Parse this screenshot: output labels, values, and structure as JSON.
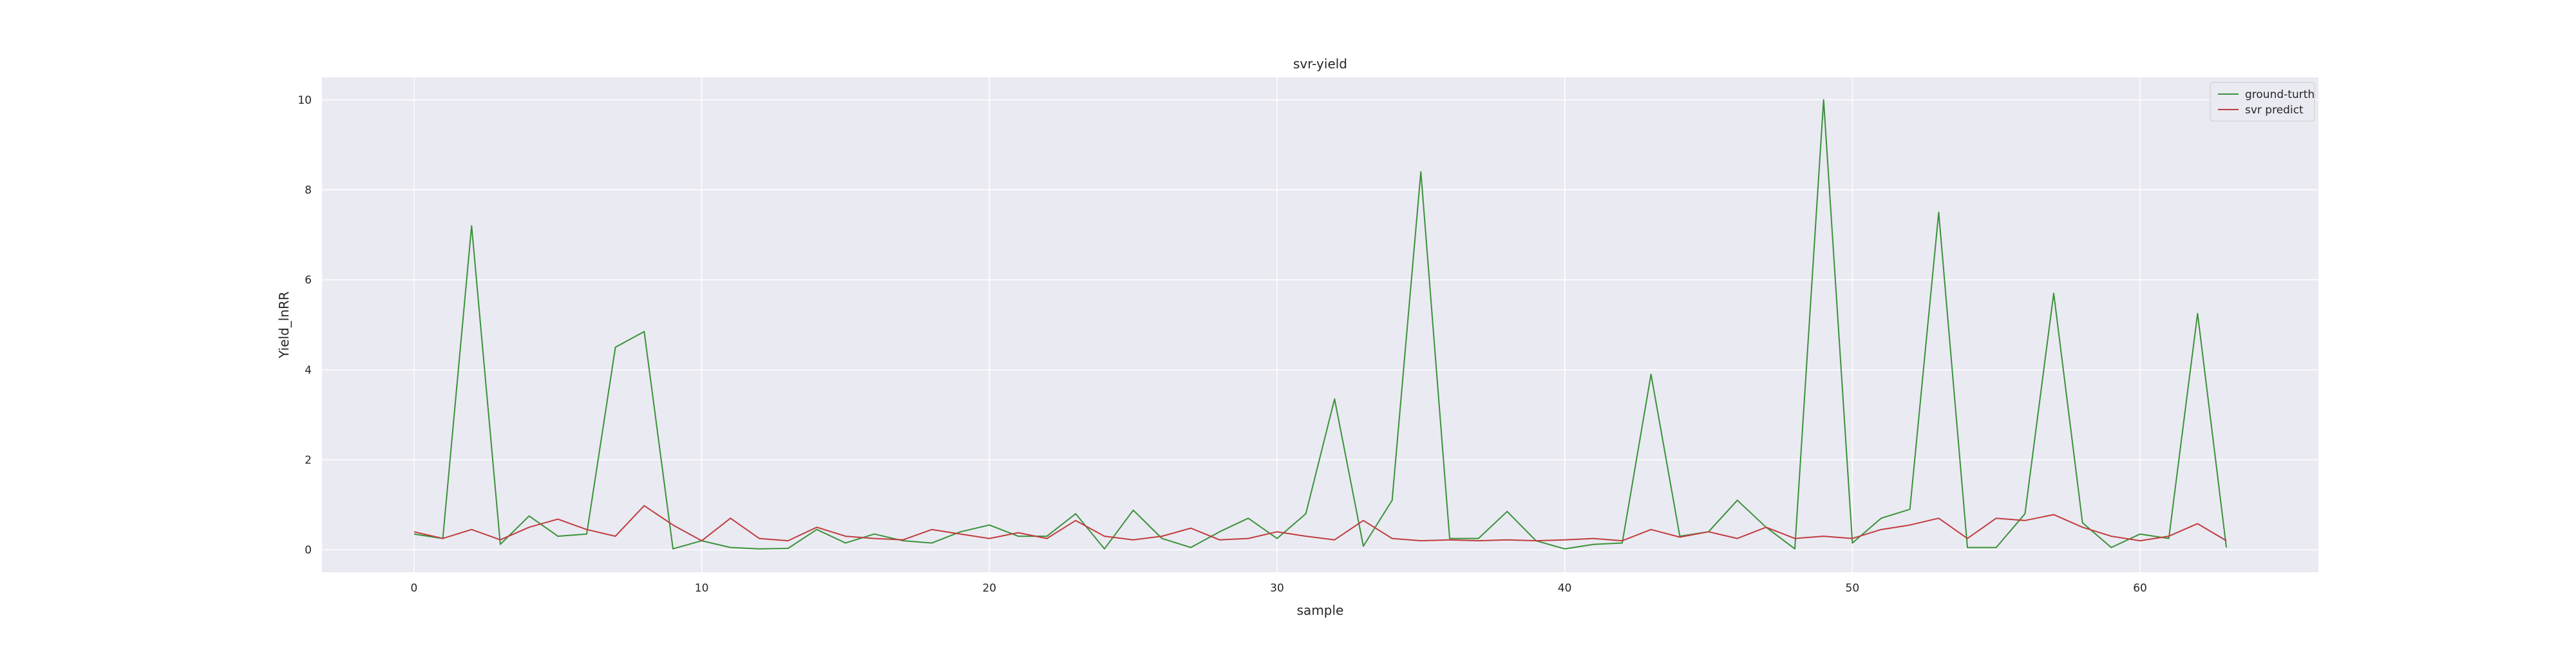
{
  "chart_data": {
    "type": "line",
    "title": "svr-yield",
    "xlabel": "sample",
    "ylabel": "Yield_lnRR",
    "xlim": [
      -3.2,
      66.2
    ],
    "ylim": [
      -0.5,
      10.5
    ],
    "xticks": [
      0,
      10,
      20,
      30,
      40,
      50,
      60
    ],
    "yticks": [
      0,
      2,
      4,
      6,
      8,
      10
    ],
    "grid": true,
    "legend_position": "top-right",
    "x": [
      0,
      1,
      2,
      3,
      4,
      5,
      6,
      7,
      8,
      9,
      10,
      11,
      12,
      13,
      14,
      15,
      16,
      17,
      18,
      19,
      20,
      21,
      22,
      23,
      24,
      25,
      26,
      27,
      28,
      29,
      30,
      31,
      32,
      33,
      34,
      35,
      36,
      37,
      38,
      39,
      40,
      41,
      42,
      43,
      44,
      45,
      46,
      47,
      48,
      49,
      50,
      51,
      52,
      53,
      54,
      55,
      56,
      57,
      58,
      59,
      60,
      61,
      62,
      63
    ],
    "series": [
      {
        "name": "ground-turth",
        "color": "#3a923a",
        "values": [
          0.35,
          0.25,
          7.2,
          0.12,
          0.75,
          0.3,
          0.35,
          4.5,
          4.85,
          0.02,
          0.2,
          0.05,
          0.02,
          0.03,
          0.45,
          0.15,
          0.35,
          0.2,
          0.15,
          0.4,
          0.55,
          0.3,
          0.3,
          0.8,
          0.02,
          0.88,
          0.25,
          0.05,
          0.4,
          0.7,
          0.25,
          0.8,
          3.35,
          0.08,
          1.1,
          8.4,
          0.25,
          0.25,
          0.85,
          0.2,
          0.02,
          0.12,
          0.15,
          3.9,
          0.3,
          0.4,
          1.1,
          0.5,
          0.02,
          10.0,
          0.15,
          0.7,
          0.9,
          7.5,
          0.05,
          0.05,
          0.8,
          5.7,
          0.6,
          0.05,
          0.35,
          0.25,
          5.25,
          0.05
        ]
      },
      {
        "name": "svr predict",
        "color": "#c03d3e",
        "values": [
          0.4,
          0.25,
          0.45,
          0.22,
          0.5,
          0.68,
          0.45,
          0.3,
          0.98,
          0.55,
          0.2,
          0.7,
          0.25,
          0.2,
          0.5,
          0.3,
          0.25,
          0.22,
          0.45,
          0.35,
          0.25,
          0.38,
          0.25,
          0.65,
          0.3,
          0.22,
          0.3,
          0.48,
          0.22,
          0.25,
          0.4,
          0.3,
          0.22,
          0.65,
          0.25,
          0.2,
          0.22,
          0.2,
          0.22,
          0.2,
          0.22,
          0.25,
          0.2,
          0.45,
          0.28,
          0.4,
          0.25,
          0.5,
          0.25,
          0.3,
          0.25,
          0.45,
          0.55,
          0.7,
          0.25,
          0.7,
          0.65,
          0.78,
          0.5,
          0.3,
          0.2,
          0.3,
          0.58,
          0.2
        ]
      }
    ]
  }
}
